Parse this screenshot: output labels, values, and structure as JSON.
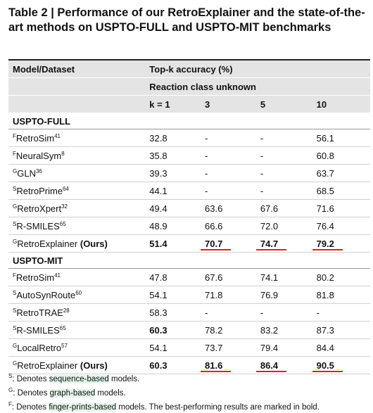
{
  "title": "Table 2 | Performance of our RetroExplainer and the state-of-the-art methods on USPTO-FULL and USPTO-MIT benchmarks",
  "header": {
    "model": "Model/Dataset",
    "metric": "Top-k accuracy (%)",
    "setting": "Reaction class unknown",
    "k": [
      "k = 1",
      "3",
      "5",
      "10"
    ]
  },
  "sections": [
    {
      "name": "USPTO-FULL",
      "rows": [
        {
          "prefix": "F",
          "name": "RetroSim",
          "ref": "41",
          "values": [
            "32.8",
            "-",
            "-",
            "56.1"
          ]
        },
        {
          "prefix": "F",
          "name": "NeuralSym",
          "ref": "8",
          "values": [
            "35.8",
            "-",
            "-",
            "60.8"
          ]
        },
        {
          "prefix": "G",
          "name": "GLN",
          "ref": "36",
          "values": [
            "39.3",
            "-",
            "-",
            "63.7"
          ]
        },
        {
          "prefix": "S",
          "name": "RetroPrime",
          "ref": "64",
          "values": [
            "44.1",
            "-",
            "-",
            "68.5"
          ]
        },
        {
          "prefix": "G",
          "name": "RetroXpert",
          "ref": "32",
          "values": [
            "49.4",
            "63.6",
            "67.6",
            "71.6"
          ]
        },
        {
          "prefix": "S",
          "name": "R-SMILES",
          "ref": "65",
          "values": [
            "48.9",
            "66.6",
            "72.0",
            "76.4"
          ]
        },
        {
          "prefix": "G",
          "name": "RetroExplainer",
          "suffix": "(Ours)",
          "values": [
            "51.4",
            "70.7",
            "74.7",
            "79.2"
          ],
          "bold": [
            0,
            1,
            2,
            3
          ],
          "underline": [
            1,
            2,
            3
          ]
        }
      ]
    },
    {
      "name": "USPTO-MIT",
      "rows": [
        {
          "prefix": "F",
          "name": "RetroSim",
          "ref": "41",
          "values": [
            "47.8",
            "67.6",
            "74.1",
            "80.2"
          ]
        },
        {
          "prefix": "S",
          "name": "AutoSynRoute",
          "ref": "60",
          "values": [
            "54.1",
            "71.8",
            "76.9",
            "81.8"
          ]
        },
        {
          "prefix": "S",
          "name": "RetroTRAE",
          "ref": "28",
          "values": [
            "58.3",
            "-",
            "-",
            "-"
          ]
        },
        {
          "prefix": "S",
          "name": "R-SMILES",
          "ref": "65",
          "values": [
            "60.3",
            "78.2",
            "83.2",
            "87.3"
          ],
          "bold": [
            0
          ]
        },
        {
          "prefix": "G",
          "name": "LocalRetro",
          "ref": "57",
          "values": [
            "54.1",
            "73.7",
            "79.4",
            "84.4"
          ]
        },
        {
          "prefix": "G",
          "name": "RetroExplainer",
          "suffix": "(Ours)",
          "values": [
            "60.3",
            "81.6",
            "86.4",
            "90.5"
          ],
          "bold": [
            0,
            1,
            2,
            3
          ],
          "underline": [
            1,
            2,
            3
          ]
        }
      ]
    }
  ],
  "footnotes": [
    {
      "mark": "S",
      "text": ": Denotes ",
      "highlight": "sequence-based",
      "after": " models."
    },
    {
      "mark": "G",
      "text": ": Denotes ",
      "highlight": "graph-based",
      "after": " models."
    },
    {
      "mark": "F",
      "text": ": Denotes ",
      "highlight": "finger-prints-based",
      "after": " models. The best-performing results are marked in bold."
    }
  ]
}
